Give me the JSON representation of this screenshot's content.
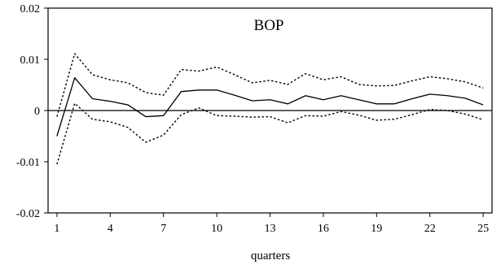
{
  "chart_data": {
    "type": "line",
    "title": "BOP",
    "xlabel": "quarters",
    "ylabel": "",
    "xlim": [
      0.5,
      25.5
    ],
    "ylim": [
      -0.02,
      0.02
    ],
    "xticks": [
      1,
      4,
      7,
      10,
      13,
      16,
      19,
      22,
      25
    ],
    "xtick_labels": [
      "1",
      "4",
      "7",
      "10",
      "13",
      "16",
      "19",
      "22",
      "25"
    ],
    "yticks": [
      0.02,
      0.01,
      0,
      -0.01,
      -0.02
    ],
    "ytick_labels": [
      "0.02",
      "0.01",
      "0",
      "-0.01",
      "-0.02"
    ],
    "zero_line": 0,
    "grid": false,
    "x": [
      1,
      2,
      3,
      4,
      5,
      6,
      7,
      8,
      9,
      10,
      11,
      12,
      13,
      14,
      15,
      16,
      17,
      18,
      19,
      20,
      21,
      22,
      23,
      24,
      25
    ],
    "series": [
      {
        "style": "solid",
        "color": "#000000",
        "values": [
          -0.005,
          0.0064,
          0.0023,
          0.0018,
          0.0011,
          -0.0012,
          -0.001,
          0.0037,
          0.004,
          0.004,
          0.003,
          0.0019,
          0.0021,
          0.0013,
          0.0029,
          0.0021,
          0.0029,
          0.0021,
          0.0013,
          0.0013,
          0.0023,
          0.0032,
          0.0029,
          0.0024,
          0.0011
        ]
      },
      {
        "style": "dotted",
        "color": "#000000",
        "values": [
          -0.0012,
          0.0111,
          0.007,
          0.006,
          0.0054,
          0.0035,
          0.003,
          0.008,
          0.0077,
          0.0085,
          0.007,
          0.0054,
          0.0059,
          0.0051,
          0.0072,
          0.006,
          0.0066,
          0.0051,
          0.0048,
          0.0049,
          0.0058,
          0.0066,
          0.0062,
          0.0056,
          0.0044
        ]
      },
      {
        "style": "dotted",
        "color": "#000000",
        "values": [
          -0.0105,
          0.0014,
          -0.0017,
          -0.0022,
          -0.0033,
          -0.0062,
          -0.0048,
          -0.0008,
          0.0005,
          -0.001,
          -0.0011,
          -0.0013,
          -0.0012,
          -0.0024,
          -0.001,
          -0.0011,
          -0.0002,
          -0.0009,
          -0.0019,
          -0.0017,
          -0.0008,
          0.0002,
          0.0,
          -0.0007,
          -0.0018
        ]
      }
    ]
  }
}
